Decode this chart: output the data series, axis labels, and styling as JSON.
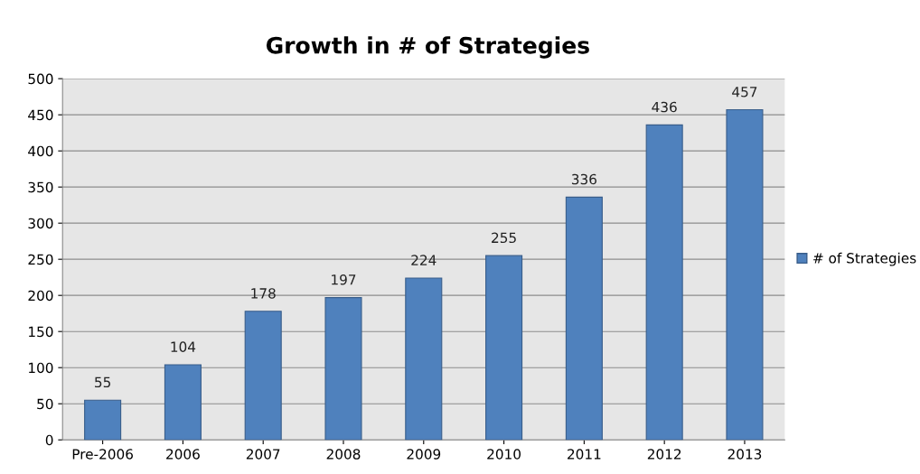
{
  "chart_data": {
    "type": "bar",
    "title": "Growth in # of Strategies",
    "categories": [
      "Pre-2006",
      "2006",
      "2007",
      "2008",
      "2009",
      "2010",
      "2011",
      "2012",
      "2013"
    ],
    "series": [
      {
        "name": "# of Strategies",
        "color": "#4f81bd",
        "values": [
          55,
          104,
          178,
          197,
          224,
          255,
          336,
          436,
          457
        ]
      }
    ],
    "ylim": [
      0,
      500
    ],
    "yticks": [
      0,
      50,
      100,
      150,
      200,
      250,
      300,
      350,
      400,
      450,
      500
    ],
    "grid": "y",
    "legend": "right",
    "data_labels": true
  }
}
